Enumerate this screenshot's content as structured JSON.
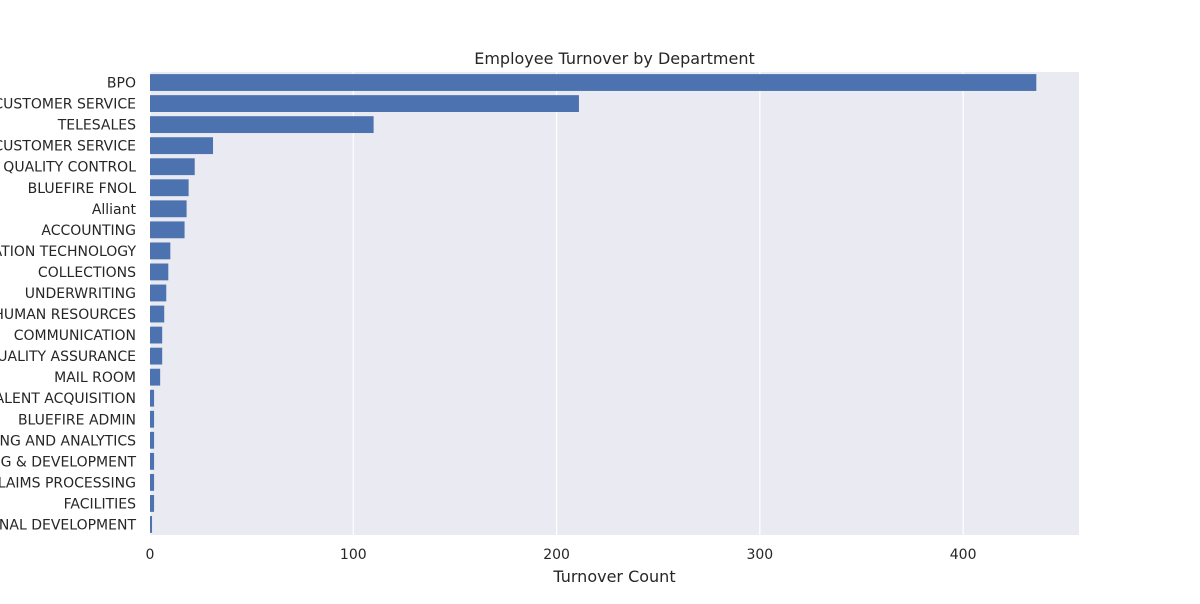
{
  "chart_data": {
    "type": "bar",
    "orientation": "horizontal",
    "title": "Employee Turnover by Department",
    "xlabel": "Turnover Count",
    "ylabel": "",
    "xlim": [
      0,
      457
    ],
    "xticks": [
      0,
      100,
      200,
      300,
      400
    ],
    "grid": true,
    "legend": "none",
    "categories": [
      "BPO",
      "CUSTOMER SERVICE",
      "TELESALES",
      "CUSTOMER SERVICE",
      "QUALITY CONTROL",
      "BLUEFIRE FNOL",
      "Alliant",
      "ACCOUNTING",
      "INFORMATION TECHNOLOGY",
      "COLLECTIONS",
      "UNDERWRITING",
      "HUMAN RESOURCES",
      "COMMUNICATION",
      "QUALITY ASSURANCE",
      "MAIL ROOM",
      "TALENT ACQUISITION",
      "BLUEFIRE ADMIN",
      "REPORTING AND ANALYTICS",
      "TRAINING & DEVELOPMENT",
      "CLAIMS PROCESSING",
      "FACILITIES",
      "ORGANIZATIONAL DEVELOPMENT"
    ],
    "values": [
      436,
      211,
      110,
      31,
      22,
      19,
      18,
      17,
      10,
      9,
      8,
      7,
      6,
      6,
      5,
      2,
      2,
      2,
      2,
      2,
      2,
      1
    ]
  },
  "colors": {
    "bar": "#4c72b0",
    "plot_background": "#eaeaf2",
    "grid": "#ffffff",
    "text": "#262626"
  }
}
